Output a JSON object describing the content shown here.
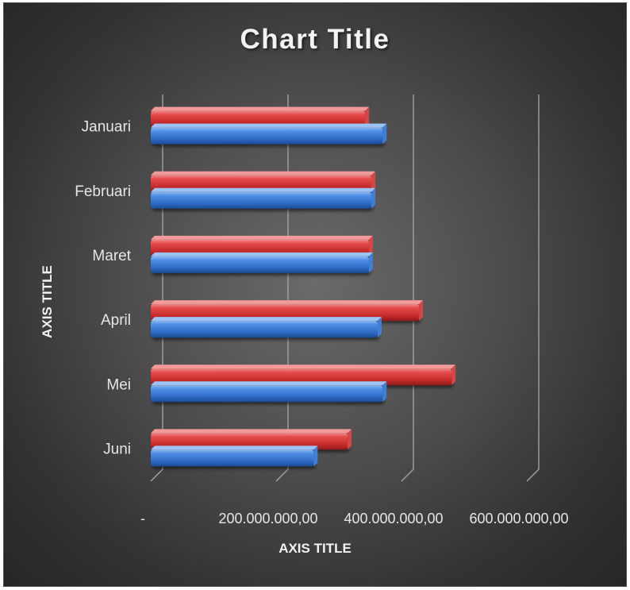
{
  "chart_data": {
    "type": "bar",
    "orientation": "horizontal",
    "title": "Chart Title",
    "xlabel": "AXIS TITLE",
    "ylabel": "AXIS TITLE",
    "categories": [
      "Januari",
      "Februari",
      "Maret",
      "April",
      "Mei",
      "Juni"
    ],
    "series": [
      {
        "color": "#3d7dd6",
        "values": [
          370000000,
          352000000,
          348000000,
          362000000,
          370000000,
          260000000
        ]
      },
      {
        "color": "#d93a3a",
        "values": [
          342000000,
          352000000,
          348000000,
          428000000,
          480000000,
          314000000
        ]
      }
    ],
    "xlim": [
      0,
      600000000
    ],
    "xticks": [
      0,
      200000000,
      400000000,
      600000000
    ],
    "xtick_labels": [
      "-",
      "200.000.000,00",
      "400.000.000,00",
      "600.000.000,00"
    ],
    "grid": "vertical",
    "legend": "none"
  }
}
